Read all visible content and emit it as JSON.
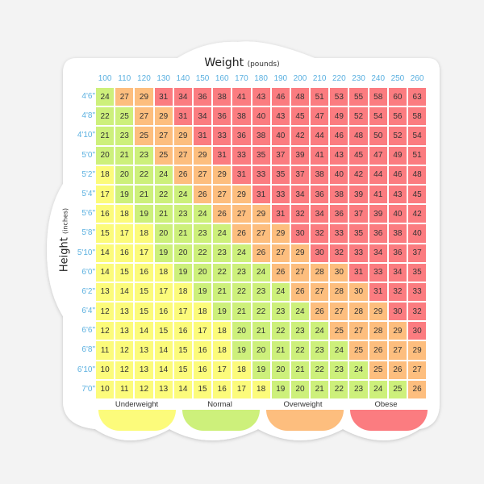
{
  "colors": {
    "Y": "#fcfb7b",
    "G": "#cdf07b",
    "O": "#fdbe7e",
    "R": "#fb7c80",
    "axis_label": "#5ab0e0",
    "background": "#f3f3f3"
  },
  "title": {
    "main": "Weight",
    "sub": "(pounds)"
  },
  "ylabel": {
    "main": "Height",
    "sub": "(inches)"
  },
  "legend": [
    {
      "label": "Underweight",
      "color": "#fcfb7b"
    },
    {
      "label": "Normal",
      "color": "#cdf07b"
    },
    {
      "label": "Overweight",
      "color": "#fdbe7e"
    },
    {
      "label": "Obese",
      "color": "#fb7c80"
    }
  ],
  "chart_data": {
    "type": "heatmap",
    "title": "Weight (pounds)",
    "xlabel": "Weight (pounds)",
    "ylabel": "Height (inches)",
    "x": [
      "100",
      "110",
      "120",
      "130",
      "140",
      "150",
      "160",
      "170",
      "180",
      "190",
      "200",
      "210",
      "220",
      "230",
      "240",
      "250",
      "260"
    ],
    "y": [
      "4'6\"",
      "4'8\"",
      "4'10\"",
      "5'0\"",
      "5'2\"",
      "5'4\"",
      "5'6\"",
      "5'8\"",
      "5'10\"",
      "6'0\"",
      "6'2\"",
      "6'4\"",
      "6'6\"",
      "6'8\"",
      "6'10\"",
      "7'0\""
    ],
    "values": [
      [
        24,
        27,
        29,
        31,
        34,
        36,
        38,
        41,
        43,
        46,
        48,
        51,
        53,
        55,
        58,
        60,
        63
      ],
      [
        22,
        25,
        27,
        29,
        31,
        34,
        36,
        38,
        40,
        43,
        45,
        47,
        49,
        52,
        54,
        56,
        58
      ],
      [
        21,
        23,
        25,
        27,
        29,
        31,
        33,
        36,
        38,
        40,
        42,
        44,
        46,
        48,
        50,
        52,
        54
      ],
      [
        20,
        21,
        23,
        25,
        27,
        29,
        31,
        33,
        35,
        37,
        39,
        41,
        43,
        45,
        47,
        49,
        51
      ],
      [
        18,
        20,
        22,
        24,
        26,
        27,
        29,
        31,
        33,
        35,
        37,
        38,
        40,
        42,
        44,
        46,
        48
      ],
      [
        17,
        19,
        21,
        22,
        24,
        26,
        27,
        29,
        31,
        33,
        34,
        36,
        38,
        39,
        41,
        43,
        45
      ],
      [
        16,
        18,
        19,
        21,
        23,
        24,
        26,
        27,
        29,
        31,
        32,
        34,
        36,
        37,
        39,
        40,
        42
      ],
      [
        15,
        17,
        18,
        20,
        21,
        23,
        24,
        26,
        27,
        29,
        30,
        32,
        33,
        35,
        36,
        38,
        40
      ],
      [
        14,
        16,
        17,
        19,
        20,
        22,
        23,
        24,
        26,
        27,
        29,
        30,
        32,
        33,
        34,
        36,
        37
      ],
      [
        14,
        15,
        16,
        18,
        19,
        20,
        22,
        23,
        24,
        26,
        27,
        28,
        30,
        31,
        33,
        34,
        35
      ],
      [
        13,
        14,
        15,
        17,
        18,
        19,
        21,
        22,
        23,
        24,
        26,
        27,
        28,
        30,
        31,
        32,
        33
      ],
      [
        12,
        13,
        15,
        16,
        17,
        18,
        19,
        21,
        22,
        23,
        24,
        26,
        27,
        28,
        29,
        30,
        32
      ],
      [
        12,
        13,
        14,
        15,
        16,
        17,
        18,
        20,
        21,
        22,
        23,
        24,
        25,
        27,
        28,
        29,
        30
      ],
      [
        11,
        12,
        13,
        14,
        15,
        16,
        18,
        19,
        20,
        21,
        22,
        23,
        24,
        25,
        26,
        27,
        29
      ],
      [
        10,
        12,
        13,
        14,
        15,
        16,
        17,
        18,
        19,
        20,
        21,
        22,
        23,
        24,
        25,
        26,
        27
      ],
      [
        10,
        11,
        12,
        13,
        14,
        15,
        16,
        17,
        18,
        19,
        20,
        21,
        22,
        23,
        24,
        25,
        26
      ]
    ],
    "categories_map": [
      "GOORRRRRRRRRRRRRR",
      "GGOORRRRRRRRRRRRR",
      "GGOOORRRRRRRRRRRR",
      "GGGOOORRRRRRRRRRR",
      "YGGGOOORRRRRRRRRR",
      "YGGGGOOORRRRRRRRR",
      "YYGGGGOOORRRRRRRR",
      "YYYGGGGOOORRRRRRR",
      "YYYGGGGGOOORRRRRR",
      "YYYYGGGGGOOOORRRR",
      "YYYYYGGGGGOOOORRR",
      "YYYYYYGGGGGOOOORR",
      "YYYYYYYGGGGGOOOOR",
      "YYYYYYYGGGGGGOOOO",
      "YYYYYYYYGGGGGGOOO",
      "YYYYYYYYYGGGGGGGO"
    ],
    "legend": [
      "Underweight",
      "Normal",
      "Overweight",
      "Obese"
    ],
    "grid": false
  }
}
